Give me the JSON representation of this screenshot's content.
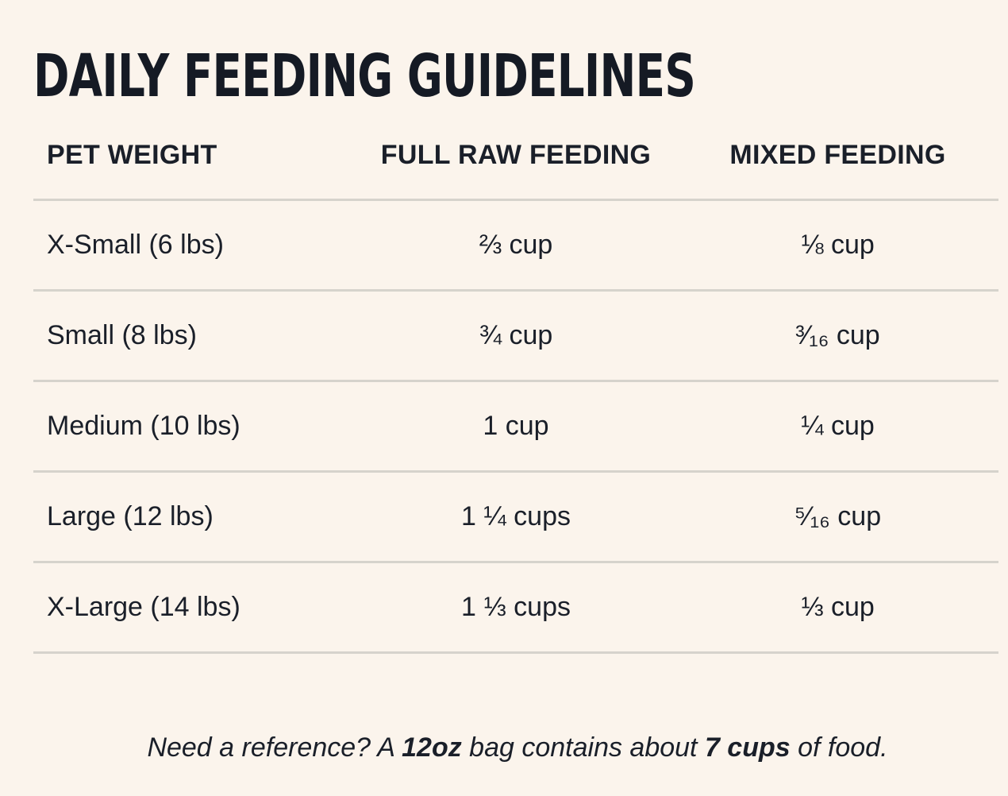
{
  "title": "Daily Feeding Guidelines",
  "table": {
    "headers": [
      "PET WEIGHT",
      "FULL RAW FEEDING",
      "MIXED FEEDING"
    ],
    "rows": [
      [
        "X-Small (6 lbs)",
        "⅔ cup",
        "⅛ cup"
      ],
      [
        "Small (8 lbs)",
        "¾ cup",
        "³⁄₁₆ cup"
      ],
      [
        "Medium (10 lbs)",
        "1 cup",
        "¼ cup"
      ],
      [
        "Large (12 lbs)",
        "1 ¼ cups",
        "⁵⁄₁₆ cup"
      ],
      [
        "X-Large (14 lbs)",
        "1 ⅓ cups",
        "⅓ cup"
      ]
    ]
  },
  "footnote": {
    "part1": "Need a reference? A ",
    "bold1": "12oz",
    "part2": " bag contains about ",
    "bold2": "7 cups",
    "part3": " of food."
  }
}
